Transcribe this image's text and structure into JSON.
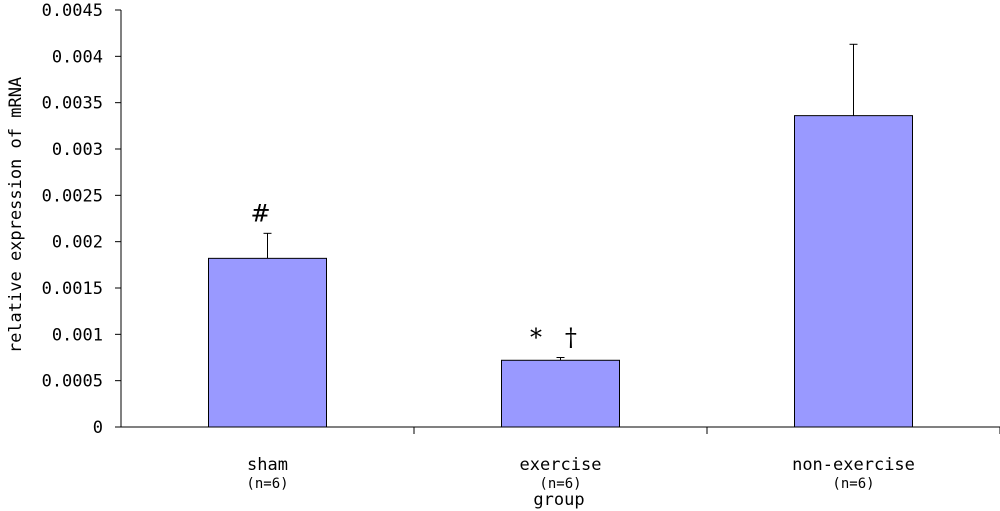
{
  "chart_data": {
    "type": "bar",
    "title": "",
    "xlabel": "group",
    "ylabel": "relative expression of mRNA",
    "ylim": [
      0,
      0.0045
    ],
    "yticks": [
      {
        "value": 0,
        "label": "0"
      },
      {
        "value": 0.0005,
        "label": "0.0005"
      },
      {
        "value": 0.001,
        "label": "0.001"
      },
      {
        "value": 0.0015,
        "label": "0.0015"
      },
      {
        "value": 0.002,
        "label": "0.002"
      },
      {
        "value": 0.0025,
        "label": "0.0025"
      },
      {
        "value": 0.003,
        "label": "0.003"
      },
      {
        "value": 0.0035,
        "label": "0.0035"
      },
      {
        "value": 0.004,
        "label": "0.004"
      },
      {
        "value": 0.0045,
        "label": "0.0045"
      }
    ],
    "categories": [
      "sham",
      "exercise",
      "non-exercise"
    ],
    "sample_sizes": [
      "(n=6)",
      "(n=6)",
      "(n=6)"
    ],
    "values": [
      0.00182,
      0.00072,
      0.00336
    ],
    "errors": [
      0.00027,
      3e-05,
      0.00077
    ],
    "annotations": [
      "#",
      "* †",
      ""
    ],
    "bar_color": "#9999ff",
    "grid": false,
    "legend": "none"
  }
}
